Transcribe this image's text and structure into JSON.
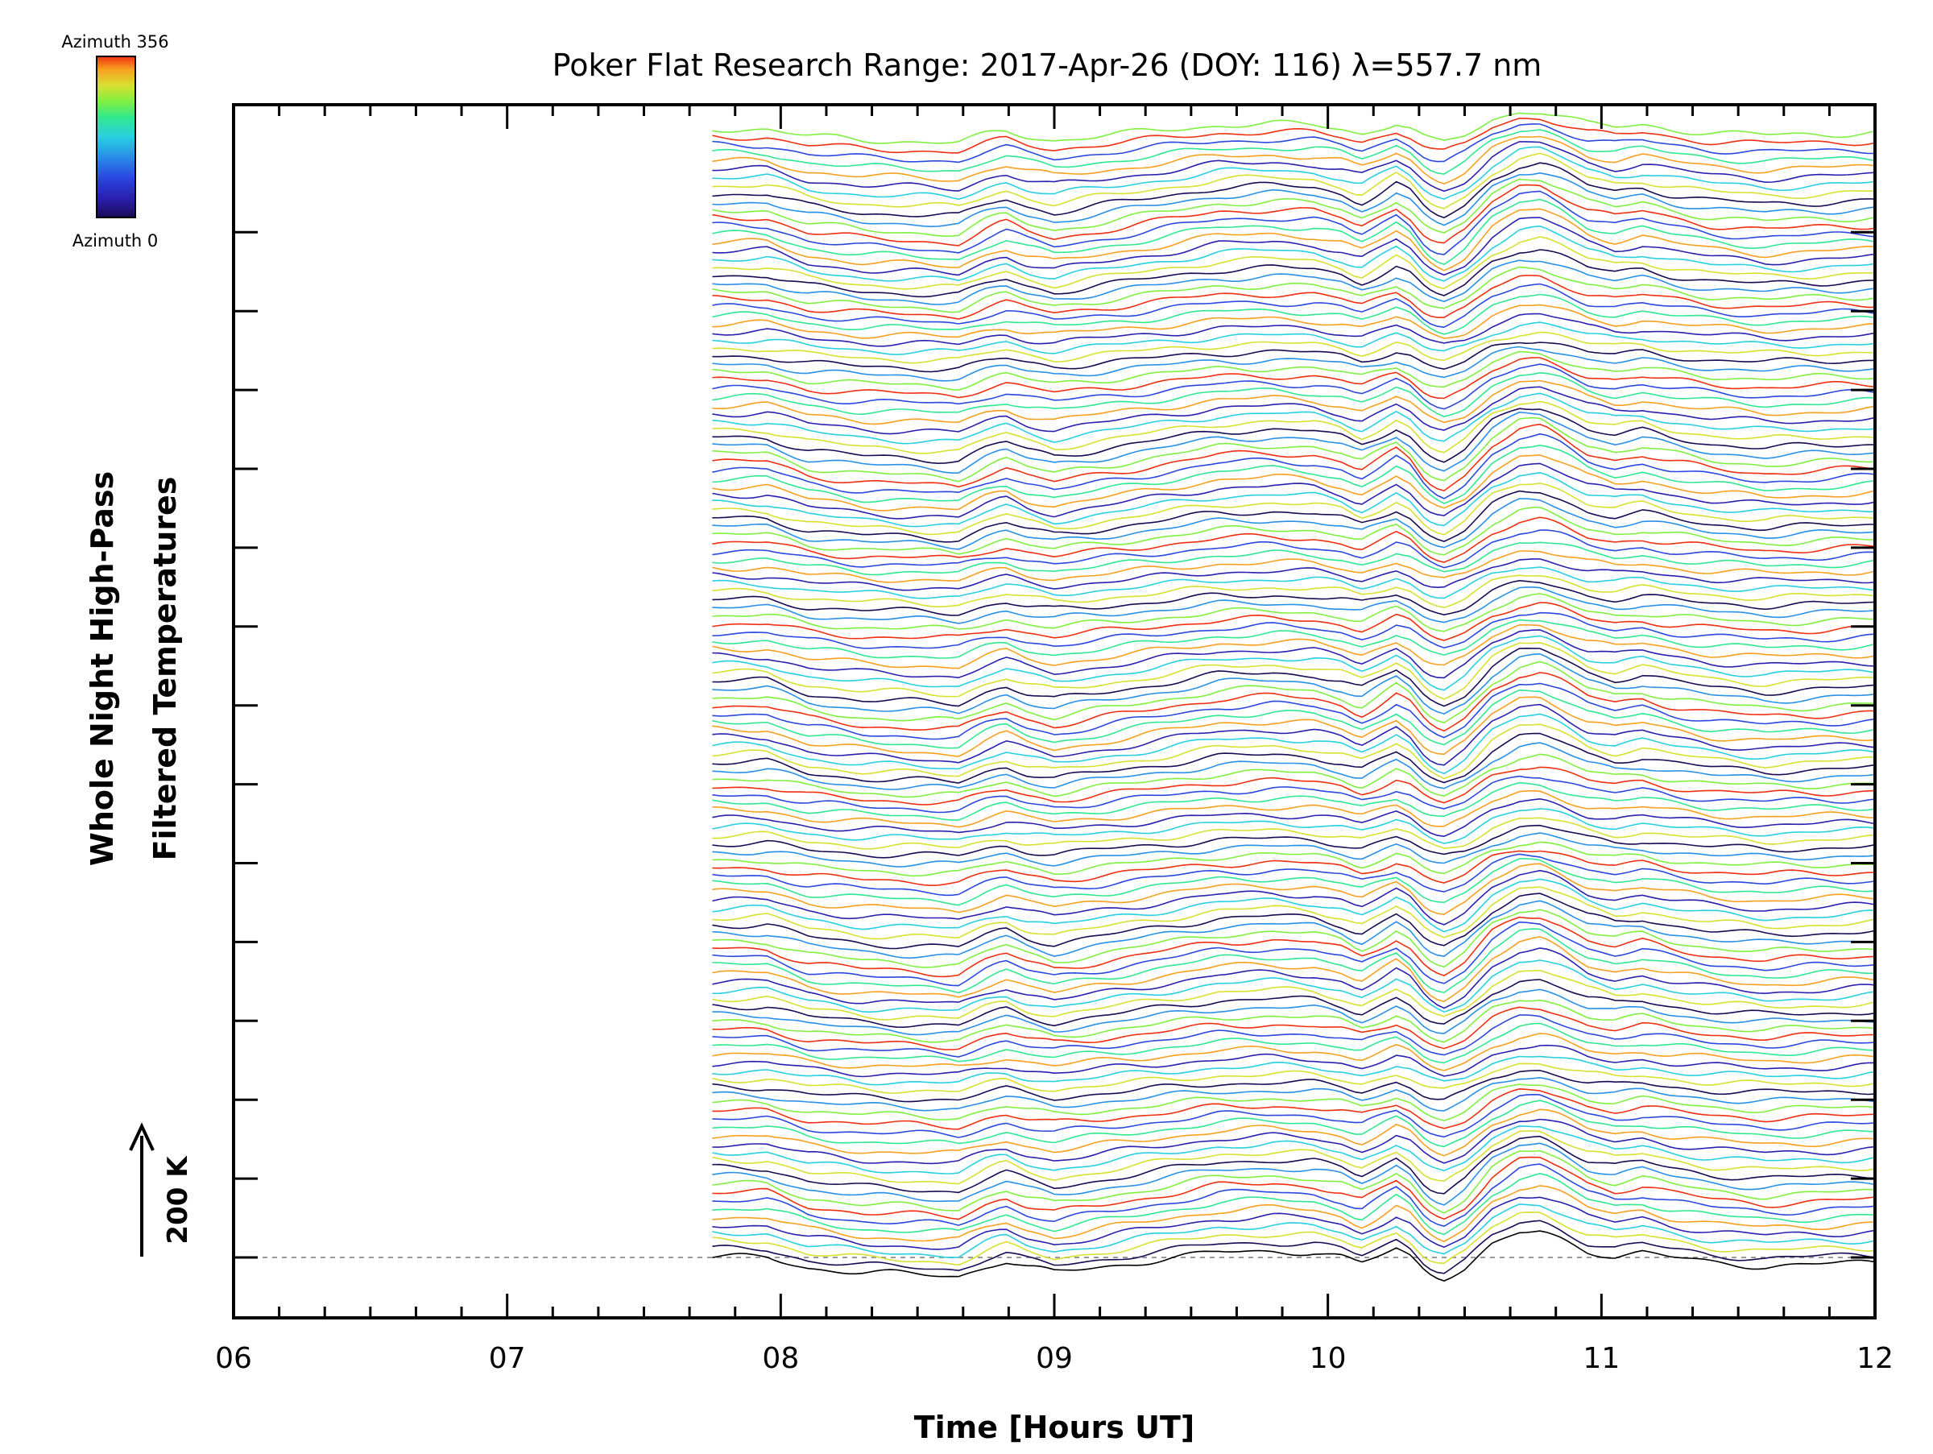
{
  "chart_data": {
    "type": "line",
    "title": "Poker Flat Research Range: 2017-Apr-26 (DOY: 116) λ=557.7 nm",
    "xlabel": "Time [Hours UT]",
    "ylabel_lines": [
      "Whole Night High-Pass",
      "Filtered Temperatures"
    ],
    "x_tick_labels": [
      "06",
      "07",
      "08",
      "09",
      "10",
      "11",
      "12"
    ],
    "xlim": [
      6,
      12
    ],
    "y_major_tick_count": 14,
    "colorbar": {
      "top_label": "Azimuth 356",
      "bottom_label": "Azimuth 0",
      "colormap": "rainbow"
    },
    "scale_bar_label": "200 K",
    "data_start_hour": 7.75,
    "line_count": 140,
    "baseline_dashed": true,
    "reference_profile": {
      "x": [
        7.75,
        7.95,
        8.1,
        8.3,
        8.5,
        8.65,
        8.75,
        8.82,
        8.9,
        9.0,
        9.2,
        9.4,
        9.6,
        9.8,
        9.95,
        10.05,
        10.12,
        10.18,
        10.25,
        10.3,
        10.36,
        10.42,
        10.5,
        10.6,
        10.7,
        10.78,
        10.85,
        10.95,
        11.05,
        11.15,
        11.25,
        11.4,
        11.6,
        11.8,
        12.0
      ],
      "y": [
        0.0,
        0.0,
        -0.6,
        -0.9,
        -1.0,
        -1.1,
        -0.5,
        -0.2,
        -0.6,
        -0.9,
        -0.5,
        -0.1,
        0.3,
        0.4,
        0.3,
        0.0,
        -0.4,
        0.0,
        0.5,
        0.1,
        -0.8,
        -1.2,
        -0.6,
        0.7,
        1.4,
        1.5,
        1.1,
        0.4,
        0.1,
        0.3,
        0.0,
        -0.3,
        -0.5,
        -0.4,
        -0.3
      ]
    },
    "colors": {
      "azimuth_line_palette": [
        "#1a0a55",
        "#2a20b0",
        "#2a48e0",
        "#2890e8",
        "#28d0e0",
        "#30e890",
        "#80f040",
        "#d8e030",
        "#f8a020",
        "#f03010"
      ],
      "axis": "#000000",
      "baseline": "#999999"
    }
  }
}
